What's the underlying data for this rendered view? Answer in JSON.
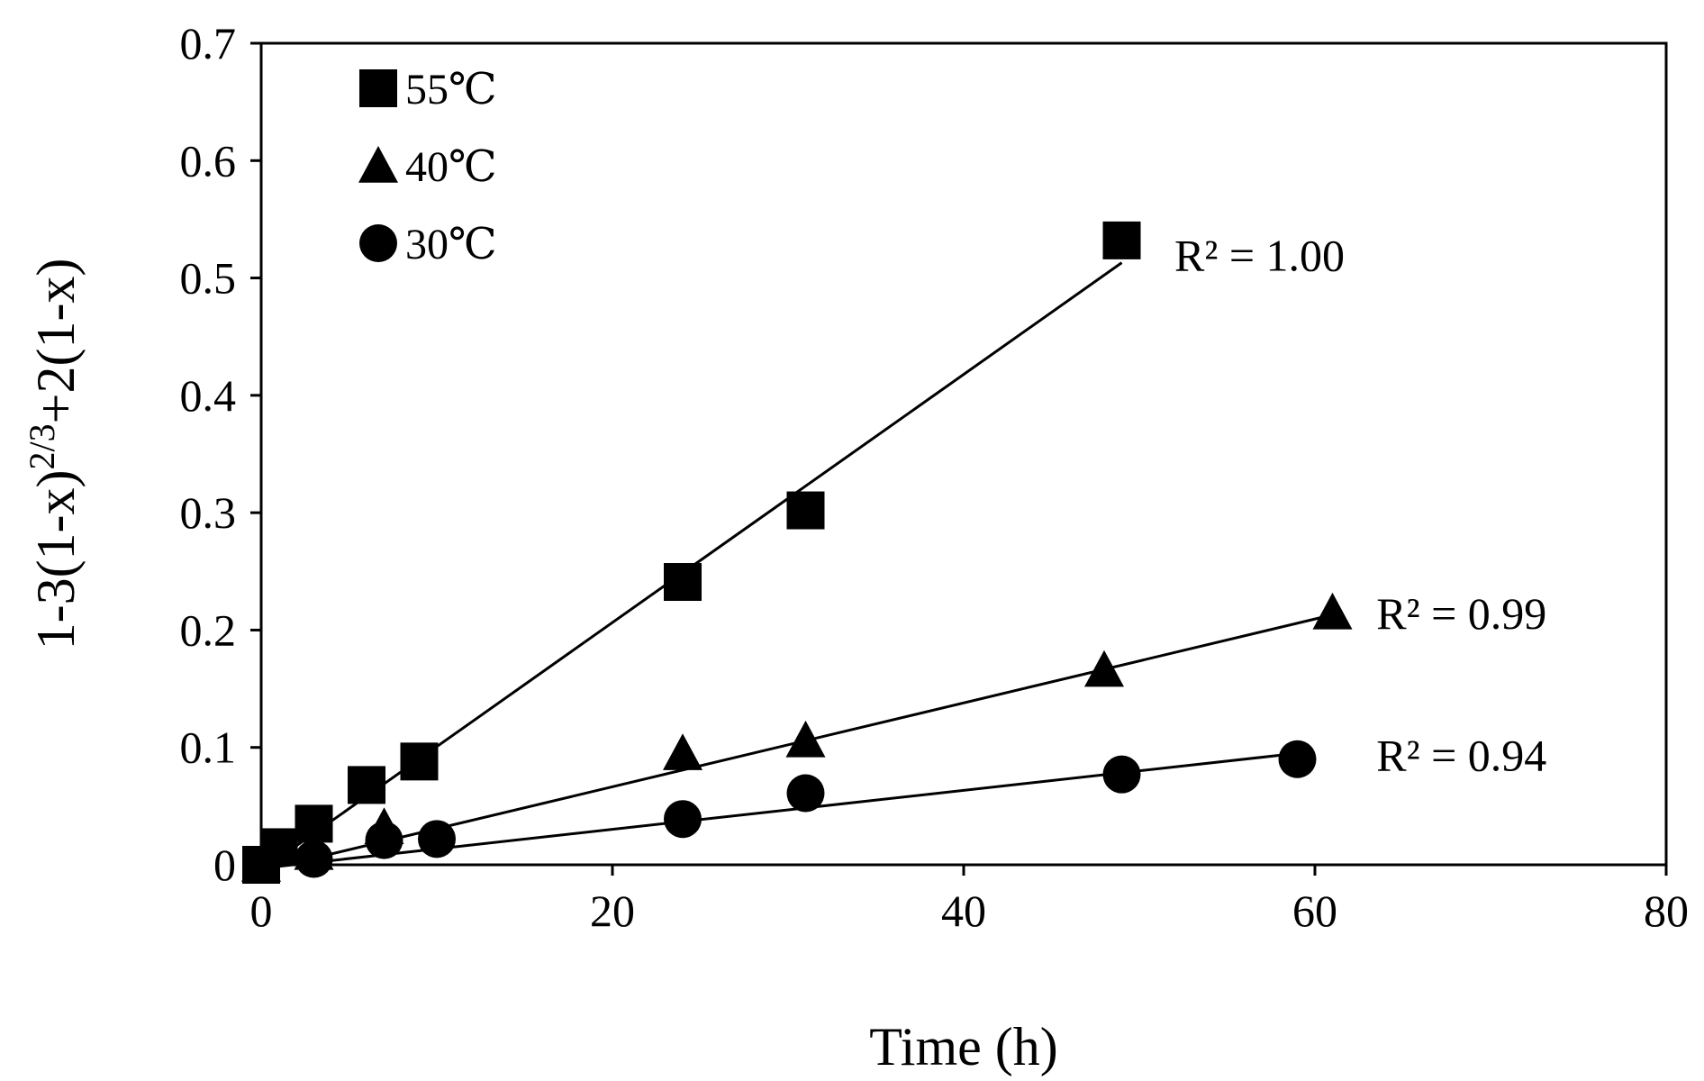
{
  "chart_data": {
    "type": "scatter",
    "title": "",
    "xlabel": "Time (h)",
    "ylabel_parts": {
      "before": "1-3(1-x)",
      "superscript": "2/3",
      "after": "+2(1-x)"
    },
    "xlim": [
      0,
      80
    ],
    "ylim": [
      0,
      0.7
    ],
    "xticks": [
      0,
      20,
      40,
      60,
      80
    ],
    "xtick_labels": [
      "0",
      "20",
      "40",
      "60",
      "80"
    ],
    "yticks": [
      0,
      0.1,
      0.2,
      0.3,
      0.4,
      0.5,
      0.6,
      0.7
    ],
    "ytick_labels": [
      "0",
      "0.1",
      "0.2",
      "0.3",
      "0.4",
      "0.5",
      "0.6",
      "0.7"
    ],
    "grid": false,
    "legend_position": "top-left",
    "series": [
      {
        "name": "55℃",
        "marker": "square",
        "x": [
          0,
          1,
          3,
          6,
          9,
          24,
          31,
          49
        ],
        "y": [
          0.0,
          0.015,
          0.035,
          0.068,
          0.088,
          0.241,
          0.302,
          0.532
        ],
        "trendline": {
          "x": [
            0,
            49
          ],
          "y": [
            -0.005,
            0.513
          ]
        },
        "r2_label": "R² = 1.00",
        "r2_anchor": {
          "x": 52,
          "y": 0.52
        }
      },
      {
        "name": "40℃",
        "marker": "triangle",
        "x": [
          0,
          3,
          7,
          24,
          31,
          48,
          61
        ],
        "y": [
          0.0,
          0.01,
          0.032,
          0.095,
          0.106,
          0.166,
          0.215
        ],
        "trendline": {
          "x": [
            0,
            61
          ],
          "y": [
            -0.005,
            0.213
          ]
        },
        "r2_label": "R² = 0.99",
        "r2_anchor": {
          "x": 63.5,
          "y": 0.215
        }
      },
      {
        "name": "30℃",
        "marker": "circle",
        "x": [
          0,
          3,
          7,
          10,
          24,
          31,
          49,
          59
        ],
        "y": [
          0.0,
          0.005,
          0.021,
          0.022,
          0.039,
          0.061,
          0.077,
          0.09
        ],
        "trendline": {
          "x": [
            0,
            59
          ],
          "y": [
            -0.003,
            0.095
          ]
        },
        "r2_label": "R² = 0.94",
        "r2_anchor": {
          "x": 63.5,
          "y": 0.094
        }
      }
    ]
  }
}
